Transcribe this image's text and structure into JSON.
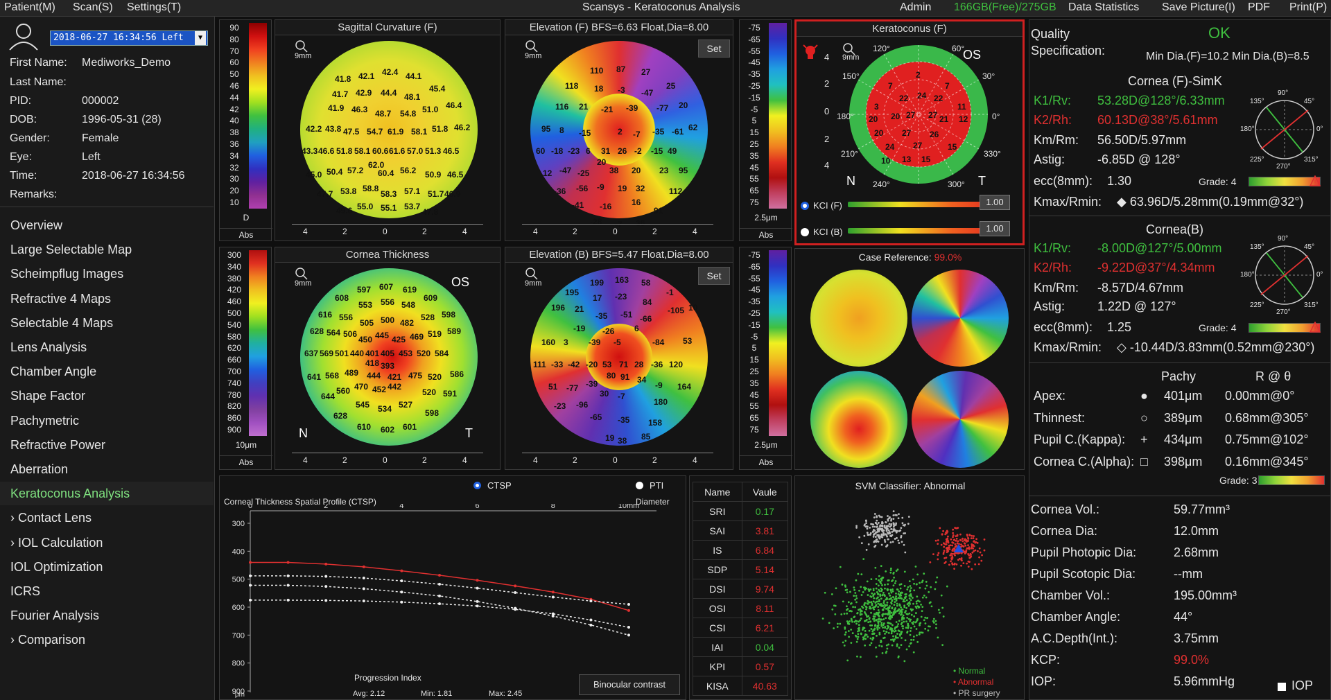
{
  "menubar": {
    "patient": "Patient(M)",
    "scan": "Scan(S)",
    "settings": "Settings(T)",
    "title": "Scansys - Keratoconus Analysis",
    "admin": "Admin",
    "disk": "166GB(Free)/275GB",
    "data_statistics": "Data Statistics",
    "save_picture": "Save Picture(I)",
    "pdf": "PDF",
    "print": "Print(P)"
  },
  "exam_select": "2018-06-27 16:34:56 Left",
  "patient": {
    "first_name_k": "First Name:",
    "first_name": "Mediworks_Demo",
    "last_name_k": "Last Name:",
    "last_name": "",
    "pid_k": "PID:",
    "pid": "000002",
    "dob_k": "DOB:",
    "dob": "1996-05-31  (28)",
    "gender_k": "Gender:",
    "gender": "Female",
    "eye_k": "Eye:",
    "eye": "Left",
    "time_k": "Time:",
    "time": "2018-06-27 16:34:56",
    "remarks_k": "Remarks:",
    "remarks": ""
  },
  "nav": [
    {
      "label": "Overview"
    },
    {
      "label": "Large Selectable Map"
    },
    {
      "label": "Scheimpflug Images"
    },
    {
      "label": "Refractive 4 Maps"
    },
    {
      "label": "Selectable 4 Maps"
    },
    {
      "label": "Lens Analysis"
    },
    {
      "label": "Chamber Angle"
    },
    {
      "label": "Shape Factor"
    },
    {
      "label": "Pachymetric"
    },
    {
      "label": "Refractive Power"
    },
    {
      "label": "Aberration"
    },
    {
      "label": "Keratoconus Analysis"
    },
    {
      "label": "› Contact Lens"
    },
    {
      "label": "› IOL Calculation"
    },
    {
      "label": "IOL Optimization"
    },
    {
      "label": "ICRS"
    },
    {
      "label": "Fourier Analysis"
    },
    {
      "label": "› Comparison"
    }
  ],
  "scale_curv": {
    "values": [
      "90",
      "80",
      "70",
      "60",
      "50",
      "46",
      "44",
      "42",
      "40",
      "38",
      "36",
      "34",
      "32",
      "30",
      "20",
      "10"
    ],
    "unit": "D",
    "mode": "Abs"
  },
  "scale_thick": {
    "values": [
      "300",
      "340",
      "380",
      "420",
      "460",
      "500",
      "540",
      "580",
      "620",
      "660",
      "700",
      "740",
      "780",
      "820",
      "860",
      "900"
    ],
    "unit": "10μm",
    "mode": "Abs"
  },
  "scale_elev": {
    "values": [
      "-75",
      "-65",
      "-55",
      "-45",
      "-35",
      "-25",
      "-15",
      "-5",
      "5",
      "15",
      "25",
      "35",
      "45",
      "55",
      "65",
      "75"
    ],
    "unit": "2.5μm",
    "mode": "Abs"
  },
  "maps": {
    "sag_title": "Sagittal Curvature (F)",
    "elev_f_title": "Elevation (F) BFS=6.63 Float,Dia=8.00",
    "thick_title": "Cornea Thickness",
    "elev_b_title": "Elevation (B) BFS=5.47 Float,Dia=8.00",
    "zoom": "9mm",
    "set": "Set",
    "os": "OS",
    "n": "N",
    "t": "T",
    "axis": [
      "4",
      "2",
      "0",
      "2",
      "4"
    ]
  },
  "kc": {
    "title": "Keratoconus (F)",
    "zoom": "9mm",
    "os": "OS",
    "n": "N",
    "t": "T",
    "kci_f": "KCI (F)",
    "kci_b": "KCI (B)",
    "kci_f_val": "1.00",
    "kci_b_val": "1.00",
    "deg": [
      "120°",
      "60°",
      "150°",
      "30°",
      "180°",
      "0°",
      "210°",
      "330°",
      "240°",
      "300°"
    ],
    "yticks": [
      "4",
      "2",
      "0",
      "2",
      "4"
    ]
  },
  "case": {
    "label": "Case Reference:",
    "value": "99.0%"
  },
  "svm": {
    "title": "SVM Classifier:",
    "result": "Abnormal",
    "legend": [
      "Normal",
      "Abnormal",
      "PR surgery"
    ]
  },
  "ctsp": {
    "radio1": "CTSP",
    "radio2": "PTI",
    "title": "Corneal Thickness Spatial Profile (CTSP)",
    "diameter": "Diameter",
    "x_ticks": [
      "0",
      "2",
      "4",
      "6",
      "8",
      "10mm"
    ],
    "y_ticks": [
      "300",
      "400",
      "500",
      "600",
      "700",
      "800",
      "900"
    ],
    "y_unit": "μm",
    "prog": "Progression Index",
    "avg": "Avg: 2.12",
    "min": "Min: 1.81",
    "max": "Max: 2.45",
    "binocular": "Binocular contrast"
  },
  "indices": {
    "h_name": "Name",
    "h_value": "Vaule",
    "rows": [
      {
        "name": "SRI",
        "value": "0.17",
        "color": "#3fbf3f"
      },
      {
        "name": "SAI",
        "value": "3.81",
        "color": "#e03030"
      },
      {
        "name": "IS",
        "value": "6.84",
        "color": "#e03030"
      },
      {
        "name": "SDP",
        "value": "5.14",
        "color": "#e03030"
      },
      {
        "name": "DSI",
        "value": "9.74",
        "color": "#e03030"
      },
      {
        "name": "OSI",
        "value": "8.11",
        "color": "#e03030"
      },
      {
        "name": "CSI",
        "value": "6.21",
        "color": "#e03030"
      },
      {
        "name": "IAI",
        "value": "0.04",
        "color": "#3fbf3f"
      },
      {
        "name": "KPI",
        "value": "0.57",
        "color": "#e03030"
      },
      {
        "name": "KISA",
        "value": "40.63",
        "color": "#e03030"
      }
    ]
  },
  "right": {
    "quality_k": "Quality",
    "quality_v": "OK",
    "spec_k": "Specification:",
    "spec_v": "Min Dia.(F)=10.2  Min Dia.(B)=8.5",
    "simk_title": "Cornea (F)-SimK",
    "k1_k": "K1/Rv:",
    "k1_v": "53.28D@128°/6.33mm",
    "k2_k": "K2/Rh:",
    "k2_v": "60.13D@38°/5.61mm",
    "km_k": "Km/Rm:",
    "km_v": "56.50D/5.97mm",
    "astig_k": "Astig:",
    "astig_v": "-6.85D @ 128°",
    "ecc_k": "ecc(8mm):",
    "ecc_v": "1.30",
    "grade": "Grade: 4",
    "kmax_k": "Kmax/Rmin:",
    "kmax_v": "◆ 63.96D/5.28mm(0.19mm@32°)",
    "back_title": "Cornea(B)",
    "bk1_v": "-8.00D@127°/5.00mm",
    "bk2_v": "-9.22D@37°/4.34mm",
    "bkm_v": "-8.57D/4.67mm",
    "bastig_v": "1.22D @ 127°",
    "becc_v": "1.25",
    "bgrade": "Grade: 4",
    "bkmax_v": "◇ -10.44D/3.83mm(0.52mm@230°)",
    "pachy_h": "Pachy",
    "rth_h": "R @ θ",
    "pachy": [
      {
        "name": "Apex:",
        "sym": "●",
        "pachy": "401μm",
        "r": "0.00mm@0°"
      },
      {
        "name": "Thinnest:",
        "sym": "○",
        "pachy": "389μm",
        "r": "0.68mm@305°"
      },
      {
        "name": "Pupil C.(Kappa):",
        "sym": "+",
        "pachy": "434μm",
        "r": "0.75mm@102°"
      },
      {
        "name": "Cornea C.(Alpha):",
        "sym": "□",
        "pachy": "398μm",
        "r": "0.16mm@345°"
      }
    ],
    "pgrade": "Grade: 3",
    "misc": [
      {
        "k": "Cornea Vol.:",
        "v": "59.77mm³"
      },
      {
        "k": "Cornea Dia:",
        "v": "12.0mm"
      },
      {
        "k": "Pupil Photopic Dia:",
        "v": "2.68mm"
      },
      {
        "k": "Pupil Scotopic Dia:",
        "v": "--mm"
      },
      {
        "k": "Chamber Vol.:",
        "v": "195.00mm³"
      },
      {
        "k": "Chamber Angle:",
        "v": "44°"
      },
      {
        "k": "A.C.Depth(Int.):",
        "v": "3.75mm"
      },
      {
        "k": "KCP:",
        "v": "99.0%"
      },
      {
        "k": "IOP:",
        "v": "5.96mmHg"
      }
    ],
    "iop_chk": "IOP",
    "rose": [
      "90°",
      "45°",
      "135°",
      "180°",
      "0°",
      "225°",
      "315°",
      "270°"
    ]
  }
}
